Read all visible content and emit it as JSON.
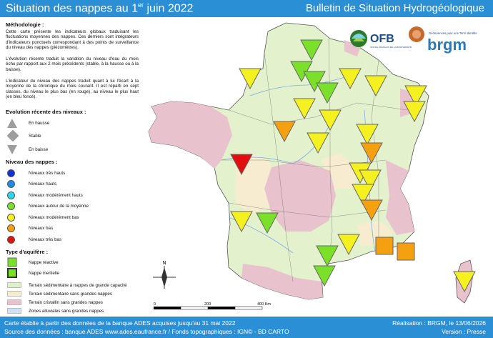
{
  "header": {
    "title_prefix": "Situation des nappes au 1",
    "title_sup": "er",
    "title_suffix": " juin 2022",
    "right_title": "Bulletin de Situation Hydrogéologique"
  },
  "footer": {
    "line1": "Carte établie à partir des données de la banque ADES acquises jusqu'au 31 mai 2022",
    "line2": "Source des données : banque ADES www.ades.eaufrance.fr / Fonds topographiques : IGN© - BD CARTO",
    "right1": "Réalisation : BRGM, le 13/06/2026",
    "right2": "Version : Presse"
  },
  "legend": {
    "methodology_title": "Méthodologie :",
    "methodology_p1": "Cette carte présente les indicateurs globaux traduisant les fluctuations moyennes des nappes. Ces derniers sont intégrateurs d'indicateurs ponctuels correspondant à des points de surveillance du niveau des nappes (piézomètres).",
    "methodology_p2": "L'évolution récente traduit la variation du niveau d'eau du mois échu par rapport aux 2 mois précédents (stable, à la hausse ou à la baisse).",
    "methodology_p3": "L'indicateur du niveau des nappes traduit quant à lui l'écart à la moyenne de la chronique du mois courant. Il est réparti en sept classes, du niveau le plus bas (en rouge), au niveau le plus haut (en bleu foncé).",
    "evolution_title": "Evolution récente des niveaux :",
    "evolution_items": [
      "En hausse",
      "Stable",
      "En baisse"
    ],
    "level_title": "Niveau des nappes :",
    "level_items": [
      {
        "label": "Niveaux très hauts",
        "color": "#1030d8"
      },
      {
        "label": "Niveaux hauts",
        "color": "#1a8cf0"
      },
      {
        "label": "Niveaux modérément hauts",
        "color": "#28d8f0"
      },
      {
        "label": "Niveaux autour de la moyenne",
        "color": "#7ae02a"
      },
      {
        "label": "Niveaux modérément bas",
        "color": "#f5f020"
      },
      {
        "label": "Niveaux bas",
        "color": "#f5a010"
      },
      {
        "label": "Niveaux très bas",
        "color": "#e01010"
      }
    ],
    "aquifer_title": "Type d'aquifère :",
    "aquifer_items": [
      "Nappe réactive",
      "Nappe inertielle"
    ],
    "terrain_items": [
      {
        "label": "Terrain sédimentaire à nappes de grande capacité",
        "color": "#dff0c8"
      },
      {
        "label": "Terrain sédimentaire sans grandes nappes",
        "color": "#f8ecd0"
      },
      {
        "label": "Terrain cristallin sans grandes nappes",
        "color": "#e8c2cc"
      },
      {
        "label": "Zones alluviales sans grandes nappes",
        "color": "#cfe2f5"
      }
    ]
  },
  "map": {
    "north_label": "N",
    "scale_labels": [
      "0",
      "200",
      "400 Km"
    ],
    "indicators": [
      {
        "level": "moyenne",
        "trend": "baisse"
      },
      {
        "level": "modérément bas",
        "trend": "baisse"
      },
      {
        "level": "moyenne",
        "trend": "baisse"
      },
      {
        "level": "moyenne",
        "trend": "baisse"
      },
      {
        "level": "moyenne",
        "trend": "baisse"
      },
      {
        "level": "modérément bas",
        "trend": "baisse"
      },
      {
        "level": "modérément bas",
        "trend": "baisse"
      },
      {
        "level": "modérément bas",
        "trend": "baisse"
      },
      {
        "level": "modérément bas",
        "trend": "baisse"
      },
      {
        "level": "modérément bas",
        "trend": "baisse"
      },
      {
        "level": "bas",
        "trend": "baisse"
      },
      {
        "level": "modérément bas",
        "trend": "baisse"
      },
      {
        "level": "modérément bas",
        "trend": "baisse"
      },
      {
        "level": "bas",
        "trend": "baisse"
      },
      {
        "level": "très bas",
        "trend": "baisse"
      },
      {
        "level": "modérément bas",
        "trend": "baisse"
      },
      {
        "level": "modérément bas",
        "trend": "baisse"
      },
      {
        "level": "modérément bas",
        "trend": "baisse"
      },
      {
        "level": "bas",
        "trend": "baisse"
      },
      {
        "level": "modérément bas",
        "trend": "baisse"
      },
      {
        "level": "moyenne",
        "trend": "baisse"
      },
      {
        "level": "modérément bas",
        "trend": "baisse"
      },
      {
        "level": "bas",
        "trend": "stable"
      },
      {
        "level": "bas",
        "trend": "stable"
      },
      {
        "level": "moyenne",
        "trend": "baisse"
      },
      {
        "level": "moyenne",
        "trend": "baisse"
      },
      {
        "level": "modérément bas",
        "trend": "baisse"
      },
      {
        "level": "modérément bas",
        "trend": "baisse"
      }
    ]
  },
  "logos": {
    "ofb_text": "OFB",
    "ofb_sub": "OFFICE FRANÇAIS DE LA BIODIVERSITÉ",
    "brgm_text": "brgm",
    "brgm_tag": "Géosciences pour une Terre durable"
  }
}
